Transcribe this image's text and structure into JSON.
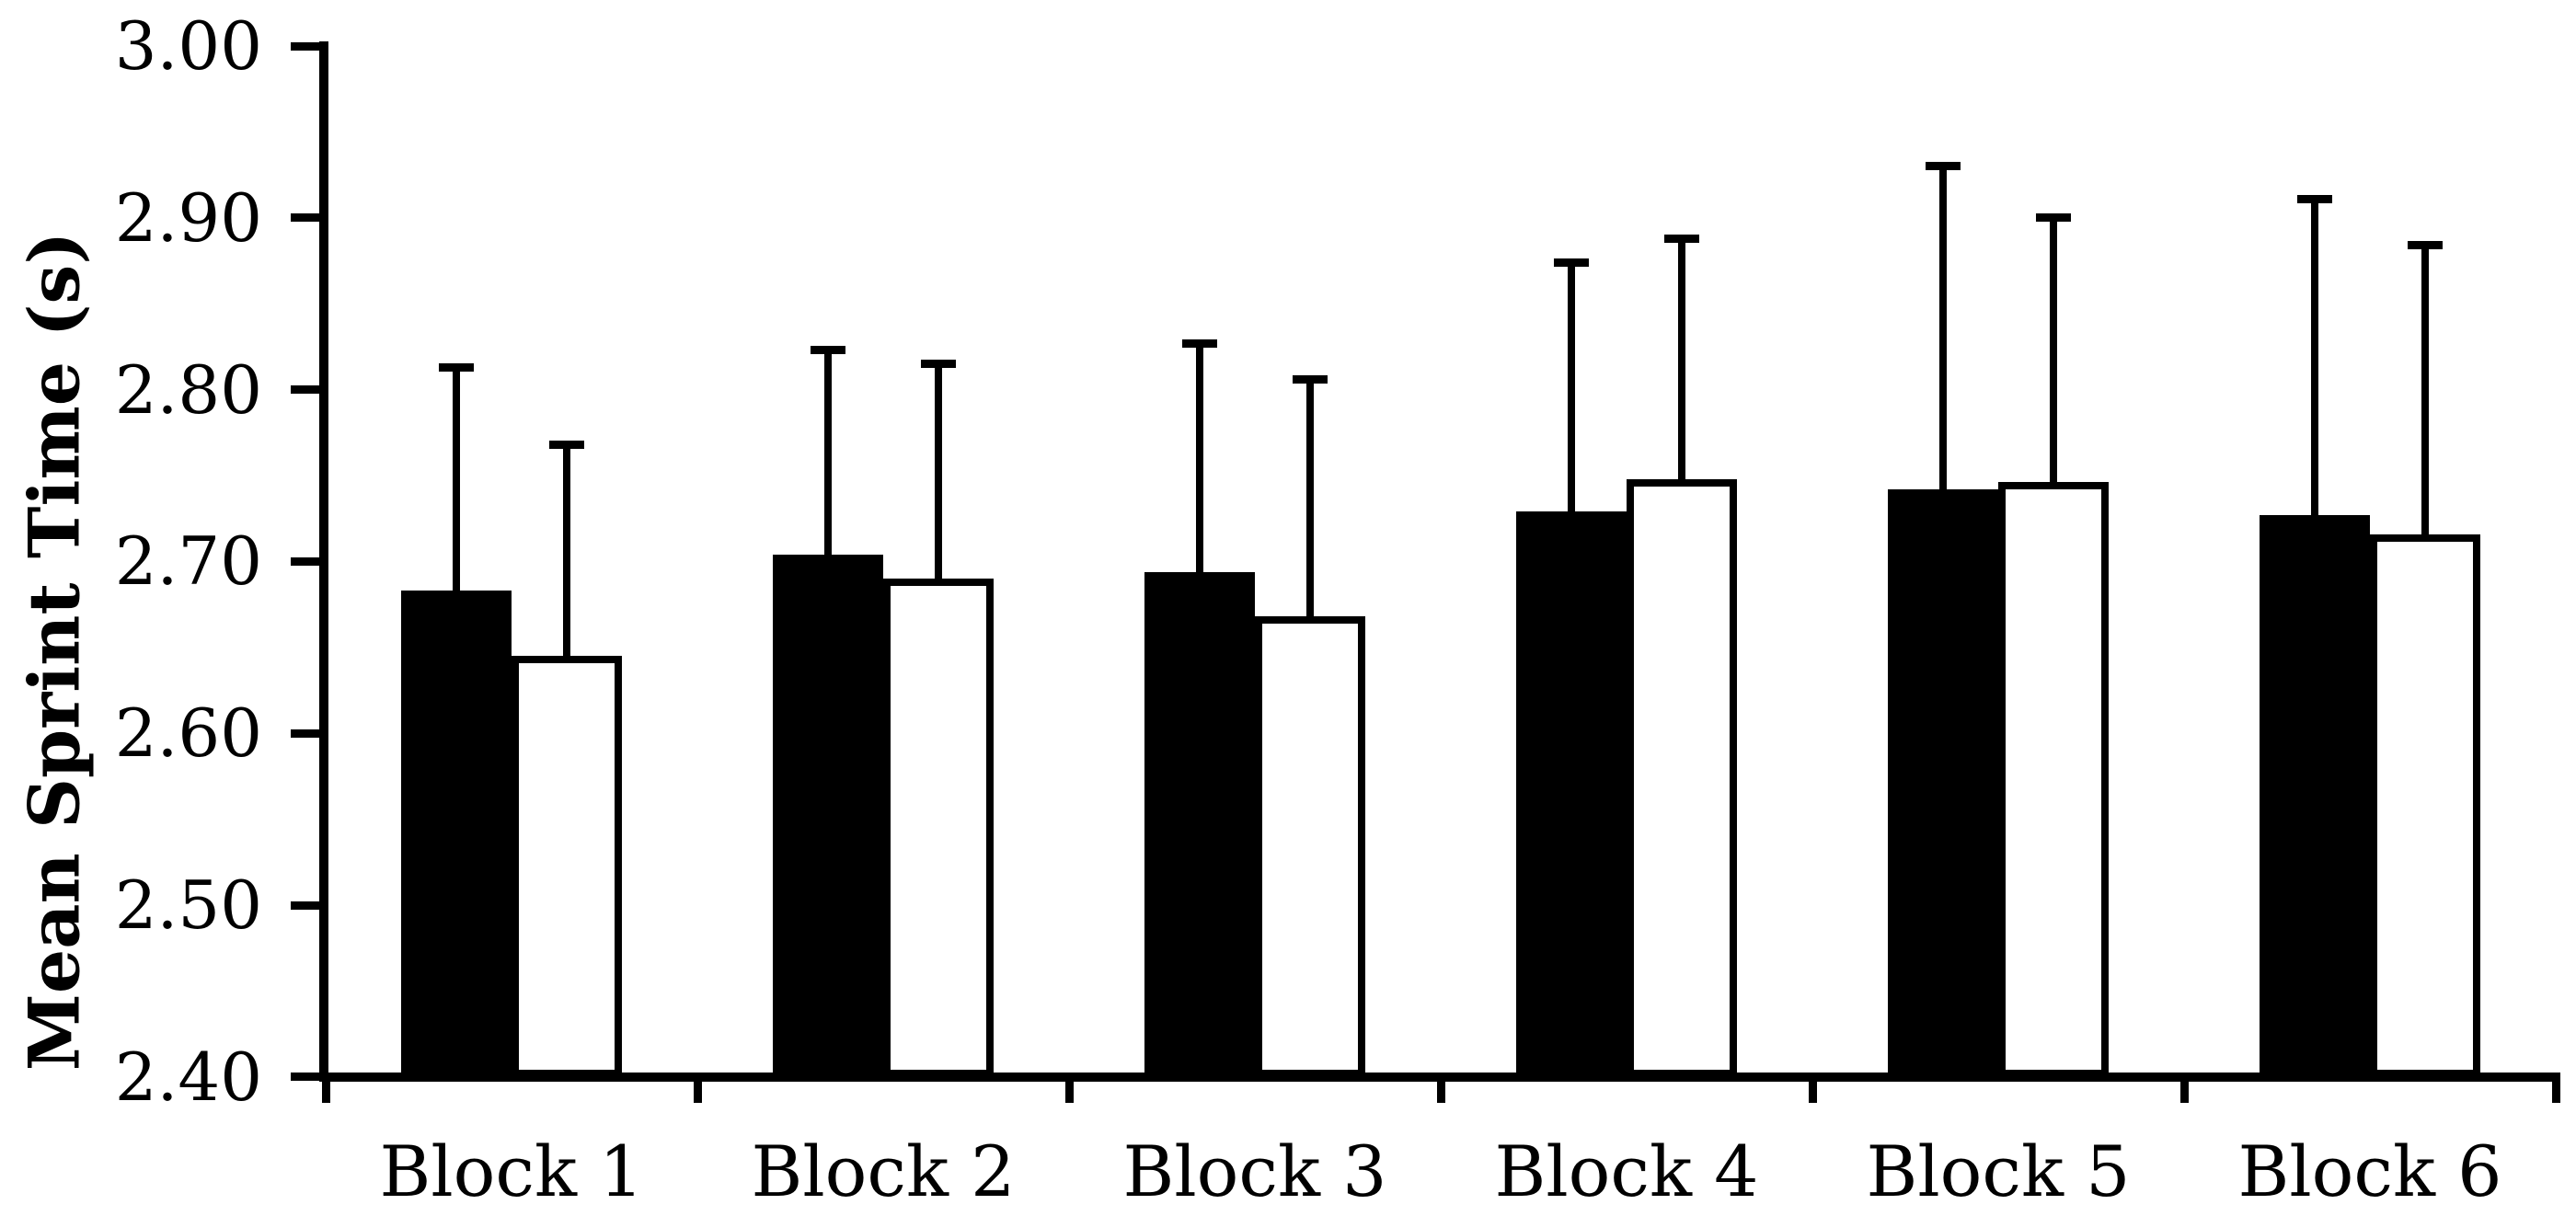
{
  "colors": {
    "background": "#ffffff",
    "ink": "#000000",
    "bar_series_1_fill": "#000000",
    "bar_series_2_fill": "#ffffff",
    "bar_series_2_border": "#000000"
  },
  "chart_data": {
    "type": "bar",
    "title": "",
    "xlabel": "",
    "ylabel": "Mean Sprint Time (s)",
    "ylim": [
      2.4,
      3.0
    ],
    "y_tick_values": [
      3.0,
      2.9,
      2.8,
      2.7,
      2.6,
      2.5,
      2.4
    ],
    "y_tick_labels": [
      "3.00",
      "2.90",
      "2.80",
      "2.70",
      "2.60",
      "2.50",
      "2.40"
    ],
    "categories": [
      "Block 1",
      "Block 2",
      "Block 3",
      "Block 4",
      "Block 5",
      "Block 6"
    ],
    "series": [
      {
        "name": "filled-black-bars",
        "style": "solid",
        "values": [
          2.683,
          2.704,
          2.694,
          2.729,
          2.742,
          2.727
        ],
        "error_tops": [
          2.813,
          2.823,
          2.827,
          2.874,
          2.93,
          2.911
        ]
      },
      {
        "name": "open-white-bars",
        "style": "outlined",
        "values": [
          2.645,
          2.69,
          2.668,
          2.748,
          2.746,
          2.716
        ],
        "error_tops": [
          2.768,
          2.815,
          2.806,
          2.888,
          2.9,
          2.884
        ]
      }
    ],
    "error_bars": "upper-only-with-caps",
    "legend": "none",
    "grid": false
  }
}
